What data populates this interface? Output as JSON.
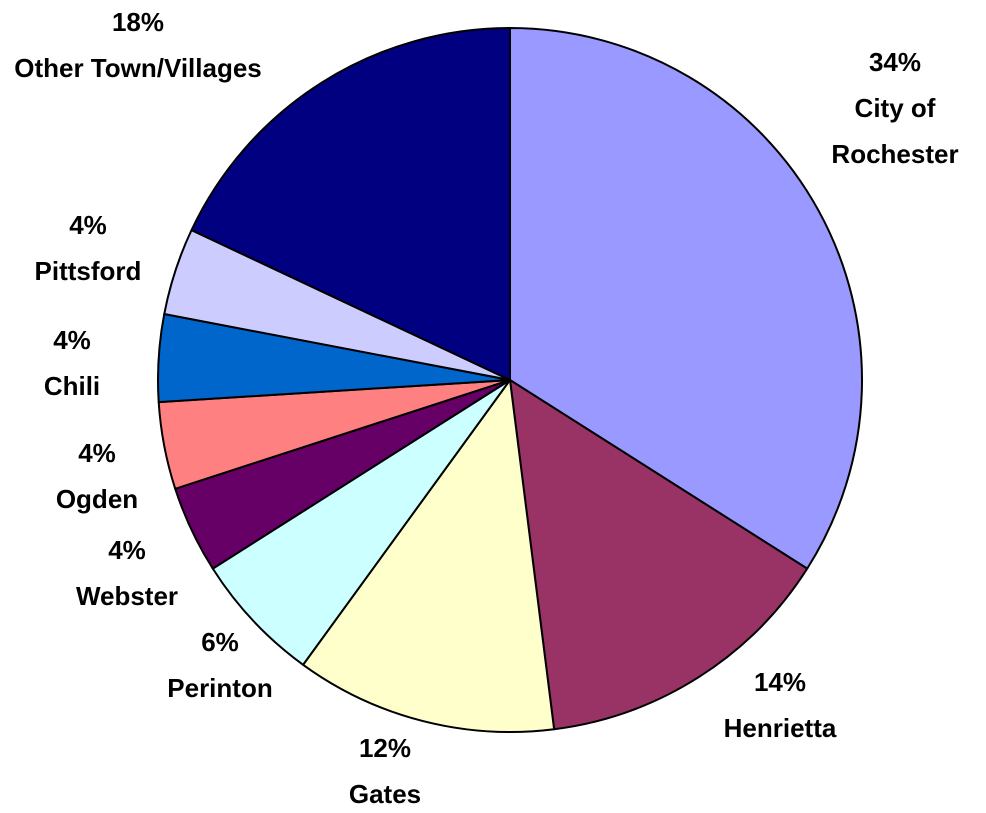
{
  "chart_data": {
    "type": "pie",
    "categories": [
      "City of Rochester",
      "Henrietta",
      "Gates",
      "Perinton",
      "Webster",
      "Ogden",
      "Chili",
      "Pittsford",
      "Other Town/Villages"
    ],
    "values": [
      34,
      14,
      12,
      6,
      4,
      4,
      4,
      4,
      18
    ],
    "value_labels": [
      "34%",
      "14%",
      "12%",
      "6%",
      "4%",
      "4%",
      "4%",
      "4%",
      "18%"
    ],
    "colors": [
      "#9999ff",
      "#993366",
      "#ffffcc",
      "#ccffff",
      "#660066",
      "#ff8080",
      "#0066cc",
      "#ccccff",
      "#000080"
    ]
  }
}
